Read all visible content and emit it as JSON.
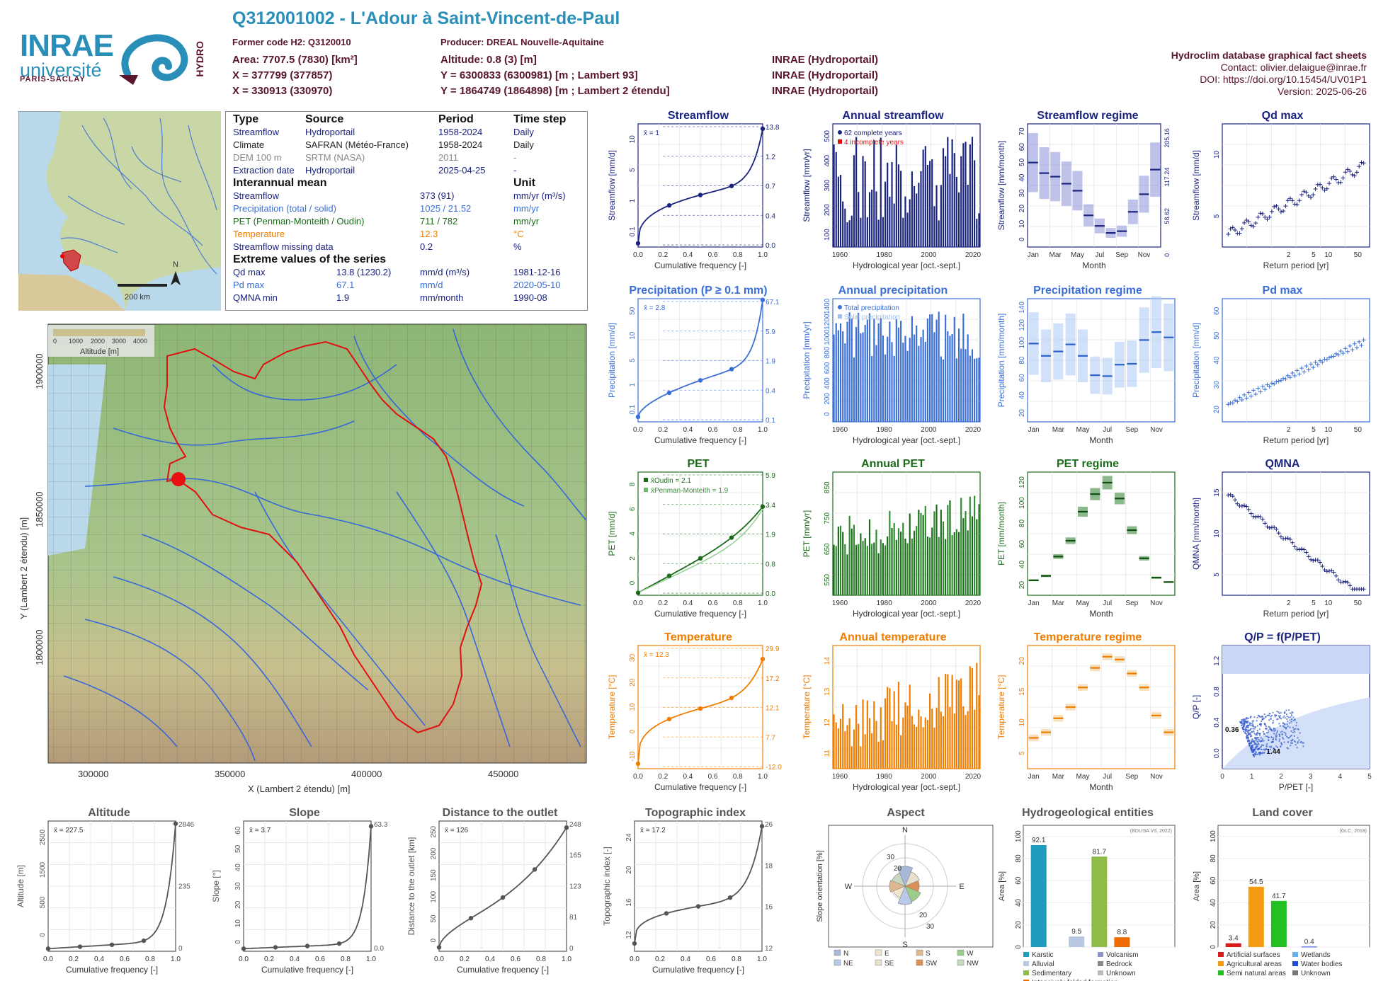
{
  "header": {
    "title": "Q312001002 - L'Adour à Saint-Vincent-de-Paul",
    "former_code": "Former code H2: Q3120010",
    "producer": "Producer: DREAL Nouvelle-Aquitaine",
    "area": "Area: 7707.5 (7830) [km²]",
    "altitude": "Altitude: 0.8 (3) [m]",
    "x93": "X = 377799 (377857)",
    "y93": "Y = 6300833 (6300981) [m ; Lambert 93]",
    "x2e": "X = 330913 (330970)",
    "y2e": "Y = 1864749 (1864898) [m ; Lambert 2 étendu]",
    "src1": "INRAE (Hydroportail)",
    "src2": "INRAE (Hydroportail)",
    "src3": "INRAE (Hydroportail)"
  },
  "right_info": {
    "name": "Hydroclim database graphical fact sheets",
    "contact": "Contact: olivier.delaigue@inrae.fr",
    "doi": "DOI: https://doi.org/10.15454/UV01P1",
    "version": "Version: 2025-06-26"
  },
  "logos": {
    "inrae": "INRAE",
    "univ": "université",
    "ps": "PARIS-SACLAY",
    "hydro": "HYDRO"
  },
  "info_table": {
    "h_type": "Type",
    "h_source": "Source",
    "h_period": "Period",
    "h_timestep": "Time step",
    "rows": [
      {
        "type": "Streamflow",
        "source": "Hydroportail",
        "period": "1958-2024",
        "step": "Daily"
      },
      {
        "type": "Climate",
        "source": "SAFRAN (Météo-France)",
        "period": "1958-2024",
        "step": "Daily"
      },
      {
        "type": "DEM 100 m",
        "source": "SRTM (NASA)",
        "period": "2011",
        "step": "-"
      },
      {
        "type": "Extraction date",
        "source": "Hydroportail",
        "period": "2025-04-25",
        "step": "-"
      }
    ],
    "h_interannual": "Interannual mean",
    "h_unit": "Unit",
    "means": [
      {
        "label": "Streamflow",
        "value": "373 (91)",
        "unit": "mm/yr (m³/s)"
      },
      {
        "label": "Precipitation (total / solid)",
        "value": "1025 / 21.52",
        "unit": "mm/yr"
      },
      {
        "label": "PET (Penman-Monteith / Oudin)",
        "value": "711 / 782",
        "unit": "mm/yr"
      },
      {
        "label": "Temperature",
        "value": "12.3",
        "unit": "°C"
      },
      {
        "label": "Streamflow missing data",
        "value": "0.2",
        "unit": "%"
      }
    ],
    "h_extreme": "Extreme values of the series",
    "extremes": [
      {
        "label": "Qd max",
        "value": "13.8 (1230.2)",
        "unit": "mm/d (m³/s)",
        "date": "1981-12-16"
      },
      {
        "label": "Pd max",
        "value": "67.1",
        "unit": "mm/d",
        "date": "2020-05-10"
      },
      {
        "label": "QMNA min",
        "value": "1.9",
        "unit": "mm/month",
        "date": "1990-08"
      }
    ]
  },
  "map": {
    "scale": "200 km",
    "north": "N",
    "alt_legend": "Altitude [m]",
    "alt_ticks": [
      "0",
      "1000",
      "2000",
      "3000",
      "4000"
    ],
    "xlabel": "X (Lambert 2 étendu) [m]",
    "ylabel": "Y (Lambert 2 étendu) [m]",
    "xticks": [
      "300000",
      "350000",
      "400000",
      "450000"
    ],
    "yticks": [
      "1900000",
      "1850000",
      "1800000"
    ]
  },
  "colors": {
    "q": "#1a237e",
    "p": "#3a6fd8",
    "e": "#1b6b1b",
    "t": "#ef7d00",
    "accent": "#2a8fb8",
    "brand": "#5a1530"
  },
  "panels": {
    "streamflow": {
      "title": "Streamflow",
      "xlabel": "Cumulative frequency [-]",
      "ylabel": "Streamflow [mm/d]",
      "mean": "x̄ = 1",
      "right_ticks": [
        "13.8",
        "1.2",
        "0.7",
        "0.4",
        "0.0"
      ],
      "yticks": [
        "0.1",
        "1",
        "5",
        "10"
      ]
    },
    "annual_streamflow": {
      "title": "Annual streamflow",
      "xlabel": "Hydrological year [oct.-sept.]",
      "ylabel": "Streamflow [mm/yr]",
      "legend1": "62 complete years",
      "legend2": "4 incomplete years",
      "yticks": [
        "100",
        "200",
        "300",
        "400",
        "500"
      ]
    },
    "streamflow_regime": {
      "title": "Streamflow regime",
      "xlabel": "Month",
      "ylabel": "Streamflow [mm/month]",
      "ylabel2": "Streamflow [m³/s]",
      "right_ticks": [
        "205.16",
        "117.24",
        "58.62",
        "0"
      ],
      "yticks": [
        "0",
        "10",
        "20",
        "30",
        "40",
        "50",
        "60",
        "70"
      ]
    },
    "qd_max": {
      "title": "Qd max",
      "xlabel": "Return period [yr]",
      "ylabel": "Streamflow [mm/d]",
      "yticks": [
        "5",
        "10"
      ]
    },
    "precipitation": {
      "title": "Precipitation (P ≥ 0.1 mm)",
      "xlabel": "Cumulative frequency [-]",
      "ylabel": "Precipitation [mm/d]",
      "mean": "x̄ = 2.8",
      "right_ticks": [
        "67.1",
        "5.9",
        "1.9",
        "0.4",
        "0.1"
      ],
      "yticks": [
        "0.1",
        "1",
        "5",
        "10",
        "50"
      ]
    },
    "annual_precipitation": {
      "title": "Annual precipitation",
      "xlabel": "Hydrological year [oct.-sept.]",
      "ylabel": "Precipitation [mm/yr]",
      "legend1": "Total precipitation",
      "legend2": "Solid precipitation",
      "yticks": [
        "0",
        "200",
        "400",
        "600",
        "800",
        "1000",
        "1200",
        "1400"
      ]
    },
    "precipitation_regime": {
      "title": "Precipitation regime",
      "xlabel": "Month",
      "ylabel": "Precipitation [mm/month]",
      "yticks": [
        "20",
        "40",
        "60",
        "80",
        "100",
        "120",
        "140"
      ]
    },
    "pd_max": {
      "title": "Pd max",
      "xlabel": "Return period [yr]",
      "ylabel": "Precipitation [mm/d]",
      "yticks": [
        "20",
        "30",
        "40",
        "50",
        "60"
      ]
    },
    "pet": {
      "title": "PET",
      "xlabel": "Cumulative frequency [-]",
      "ylabel": "PET [mm/d]",
      "mean1": "x̄Oudin = 2.1",
      "mean2": "x̄Penman-Monteith = 1.9",
      "right_ticks": [
        "5.9",
        "3.4",
        "1.9",
        "0.8",
        "0.0"
      ],
      "yticks": [
        "0",
        "2",
        "4",
        "6",
        "8"
      ]
    },
    "annual_pet": {
      "title": "Annual PET",
      "xlabel": "Hydrological year [oct.-sept.]",
      "ylabel": "PET [mm/yr]",
      "yticks": [
        "550",
        "650",
        "750",
        "850"
      ]
    },
    "pet_regime": {
      "title": "PET regime",
      "xlabel": "Month",
      "ylabel": "PET [mm/month]",
      "yticks": [
        "20",
        "40",
        "60",
        "80",
        "100",
        "120"
      ]
    },
    "qmna": {
      "title": "QMNA",
      "xlabel": "Return period [yr]",
      "ylabel": "QMNA [mm/month]",
      "yticks": [
        "5",
        "10",
        "15"
      ]
    },
    "temperature": {
      "title": "Temperature",
      "xlabel": "Cumulative frequency [-]",
      "ylabel": "Temperature [°C]",
      "mean": "x̄ = 12.3",
      "right_ticks": [
        "29.9",
        "17.2",
        "12.1",
        "7.7",
        "-12.0"
      ],
      "yticks": [
        "-10",
        "0",
        "10",
        "20",
        "30"
      ]
    },
    "annual_temperature": {
      "title": "Annual temperature",
      "xlabel": "Hydrological year [oct.-sept.]",
      "ylabel": "Temperature [°C]",
      "yticks": [
        "11",
        "12",
        "13",
        "14"
      ]
    },
    "temperature_regime": {
      "title": "Temperature regime",
      "xlabel": "Month",
      "ylabel": "Temperature [°C]",
      "yticks": [
        "5",
        "10",
        "15",
        "20"
      ]
    },
    "qp": {
      "title": "Q/P = f(P/PET)",
      "xlabel": "P/PET [-]",
      "ylabel": "Q/P [-]",
      "mark1": "0.36",
      "mark2": "1.44",
      "yticks": [
        "0.0",
        "0.4",
        "0.8",
        "1.2"
      ]
    },
    "altitude": {
      "title": "Altitude",
      "xlabel": "Cumulative frequency [-]",
      "ylabel": "Altitude [m]",
      "mean": "x̄ = 227.5",
      "right_ticks": [
        "2846",
        "235",
        "0"
      ],
      "yticks": [
        "0",
        "500",
        "1500",
        "2500"
      ]
    },
    "slope": {
      "title": "Slope",
      "xlabel": "Cumulative frequency [-]",
      "ylabel": "Slope [°]",
      "mean": "x̄ = 3.7",
      "right_ticks": [
        "63.3",
        "0.0"
      ],
      "yticks": [
        "0",
        "10",
        "20",
        "30",
        "40",
        "50",
        "60"
      ]
    },
    "distance": {
      "title": "Distance to the outlet",
      "xlabel": "Cumulative frequency [-]",
      "ylabel": "Distance to the outlet [km]",
      "mean": "x̄ = 126",
      "right_ticks": [
        "248",
        "165",
        "123",
        "81",
        "0"
      ],
      "yticks": [
        "0",
        "50",
        "100",
        "150",
        "200",
        "250"
      ]
    },
    "topo": {
      "title": "Topographic index",
      "xlabel": "Cumulative frequency [-]",
      "ylabel": "Topographic index [-]",
      "mean": "x̄ = 17.2",
      "right_ticks": [
        "26",
        "18",
        "16",
        "12"
      ],
      "yticks": [
        "12",
        "16",
        "20",
        "24"
      ]
    },
    "aspect": {
      "title": "Aspect",
      "ylabel": "Slope orientation [%]",
      "dirs": [
        "N",
        "E",
        "S",
        "W"
      ],
      "rings": [
        "10",
        "20",
        "30"
      ],
      "legend": [
        "N",
        "E",
        "S",
        "W",
        "NE",
        "SE",
        "SW",
        "NW"
      ]
    },
    "hydrogeo": {
      "title": "Hydrogeological entities",
      "ylabel": "Area [%]",
      "note": "(BDLISA V3, 2022)",
      "yticks": [
        "0",
        "20",
        "40",
        "60",
        "80",
        "100"
      ],
      "legend": [
        "Karstic",
        "Volcanism",
        "Alluvial",
        "Bedrock",
        "Sedimentary",
        "Unknown",
        "Intensively folded formation"
      ]
    },
    "landcover": {
      "title": "Land cover",
      "ylabel": "Area [%]",
      "note": "(GLC, 2018)",
      "yticks": [
        "0",
        "20",
        "40",
        "60",
        "80",
        "100"
      ],
      "legend": [
        "Artificial surfaces",
        "Wetlands",
        "Agricultural areas",
        "Water bodies",
        "Semi natural areas",
        "Unknown"
      ]
    }
  },
  "chart_data": [
    {
      "type": "bar",
      "title": "Hydrogeological entities",
      "ylabel": "Area [%]",
      "ylim": [
        0,
        110
      ],
      "categories": [
        "Karstic",
        "Alluvial",
        "Sedimentary",
        "Intensively folded formation"
      ],
      "values": [
        92.1,
        9.5,
        81.7,
        8.8
      ]
    },
    {
      "type": "bar",
      "title": "Land cover",
      "ylabel": "Area [%]",
      "ylim": [
        0,
        110
      ],
      "categories": [
        "Artificial surfaces",
        "Agricultural areas",
        "Semi natural areas",
        "Water bodies"
      ],
      "values": [
        3.4,
        54.5,
        41.7,
        0.4
      ]
    },
    {
      "type": "bar",
      "title": "Streamflow regime",
      "xlabel": "Month",
      "ylabel": "Streamflow [mm/month]",
      "categories": [
        "Oct",
        "Nov",
        "Dec",
        "Jan",
        "Feb",
        "Mar",
        "Apr",
        "May",
        "Jun",
        "Jul",
        "Aug",
        "Sep"
      ],
      "values": [
        20,
        30,
        44,
        48,
        42,
        40,
        36,
        32,
        18,
        12,
        8,
        9
      ]
    },
    {
      "type": "bar",
      "title": "Precipitation regime",
      "xlabel": "Month",
      "ylabel": "Precipitation [mm/month]",
      "categories": [
        "Oct",
        "Nov",
        "Dec",
        "Jan",
        "Feb",
        "Mar",
        "Apr",
        "May",
        "Jun",
        "Jul",
        "Aug",
        "Sep"
      ],
      "values": [
        93,
        102,
        96,
        89,
        75,
        80,
        88,
        75,
        53,
        52,
        65,
        66
      ]
    },
    {
      "type": "bar",
      "title": "PET regime",
      "xlabel": "Month",
      "ylabel": "PET [mm/month]",
      "categories": [
        "Oct",
        "Nov",
        "Dec",
        "Jan",
        "Feb",
        "Mar",
        "Apr",
        "May",
        "Jun",
        "Jul",
        "Aug",
        "Sep"
      ],
      "values": [
        42,
        20,
        15,
        17,
        22,
        44,
        62,
        95,
        115,
        128,
        110,
        74
      ]
    },
    {
      "type": "bar",
      "title": "Temperature regime",
      "xlabel": "Month",
      "ylabel": "Temperature [°C]",
      "categories": [
        "Oct",
        "Nov",
        "Dec",
        "Jan",
        "Feb",
        "Mar",
        "Apr",
        "May",
        "Jun",
        "Jul",
        "Aug",
        "Sep"
      ],
      "values": [
        14.5,
        9.5,
        6.5,
        5.5,
        6.5,
        9.0,
        11.0,
        14.5,
        18.0,
        20.0,
        19.5,
        17.0
      ]
    }
  ]
}
